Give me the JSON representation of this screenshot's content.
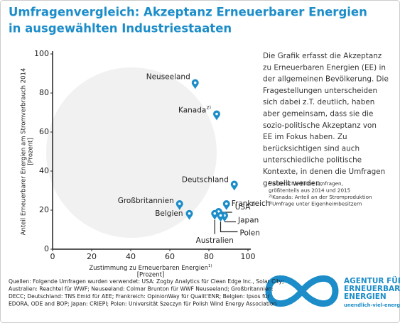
{
  "title": [
    "Umfragenvergleich: Akzeptanz Erneuerbarer Energien",
    "in ausgewählten Industriestaaten"
  ],
  "chart_data": {
    "type": "scatter",
    "color": "#1c8dc9",
    "points": [
      {
        "label": "Neuseeland",
        "x": 73,
        "y": 82
      },
      {
        "label": "Kanada",
        "note": "2)",
        "x": 84,
        "y": 66
      },
      {
        "label": "Deutschland",
        "x": 93,
        "y": 30
      },
      {
        "label": "USA",
        "note": "3)",
        "x": 85,
        "y": 16
      },
      {
        "label": "Frankreich",
        "x": 89,
        "y": 20
      },
      {
        "label": "Großbritannien",
        "x": 65,
        "y": 20
      },
      {
        "label": "Belgien",
        "x": 70,
        "y": 15
      },
      {
        "label": "Japan",
        "x": 88,
        "y": 14
      },
      {
        "label": "Polen",
        "x": 86,
        "y": 14
      },
      {
        "label": "Australien",
        "x": 83,
        "y": 15
      }
    ],
    "xlabel": {
      "text": "Zustimmung zu Erneuerbaren Energien",
      "note": "1)",
      "unit": "[Prozent]"
    },
    "ylabel": {
      "text": "Anteil Erneuerbarer Energien am Stromverbrauch 2014",
      "unit": "[Prozent]"
    },
    "xlim": [
      0,
      100
    ],
    "ylim": [
      0,
      100
    ],
    "xticks": [
      0,
      20,
      40,
      60,
      80,
      100
    ],
    "yticks": [
      0,
      20,
      40,
      60,
      80,
      100
    ]
  },
  "description": [
    "Die Grafik erfasst die Akzeptanz",
    "zu Erneuerbaren Energien (EE) in",
    "der allgemeinen Bevölkerung. Die",
    "Fragestellungen unterscheiden",
    "sich dabei z.T. deutlich, haben",
    "aber gemeinsam, dass sie die",
    "sozio-politische Akzeptanz von",
    "EE im Fokus haben. Zu",
    "berücksichtigen sind auch",
    "unterschiedliche politische",
    "Kontexte, in denen die Umfragen",
    "gestellt werden."
  ],
  "footnotes": [
    {
      "mark": "1)",
      "lines": [
        "unterschiedliche Umfragen,",
        "größtenteils aus 2014 und 2015"
      ]
    },
    {
      "mark": "2)",
      "lines": [
        "Kanada: Anteil an der Stromproduktion"
      ]
    },
    {
      "mark": "3)",
      "lines": [
        "Umfrage unter Eigenheimbesitzern"
      ]
    }
  ],
  "sources": [
    "Quellen: Folgende Umfragen wurden verwendet: USA: Zogby Analytics für Clean Edge Inc., Solar City;",
    "Australien: Reachtel für  WWF; Neuseeland: Colmar Brunton für WWF Neuseeland; Großbritannien:",
    "DECC; Deutschland: TNS Emid für AEE; Frankreich: OpinionWay für Qualit'ENR; Belgien: Ipsos für",
    "EDORA, ODE and BOP; Japan: CRIEPI; Polen:  Universität Szeczyn für Polish Wind Energy Association"
  ],
  "logo": {
    "lines": [
      "AGENTUR FÜR",
      "ERNEUERBARE",
      "ENERGIEN"
    ],
    "url": "unendlich-viel-energie.de"
  }
}
